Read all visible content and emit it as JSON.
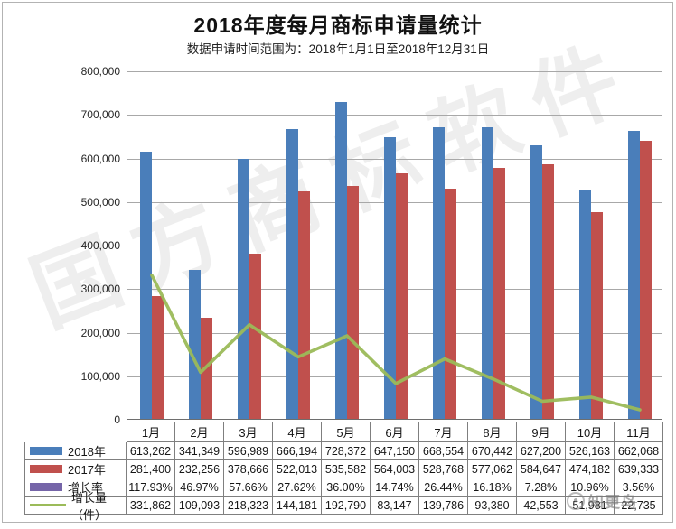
{
  "title": "2018年度每月商标申请量统计",
  "subtitle": "数据申请时间范围为：2018年1月1日至2018年12月31日",
  "watermarks": {
    "diagonal": "国方商标软件",
    "corner": "知更鸟"
  },
  "colors": {
    "bar_2018": "#4A7EBA",
    "bar_2017": "#C0504D",
    "rate_marker": "#7565A8",
    "growth_line": "#9BBB59",
    "gridline": "#A8A8A8",
    "table_border": "#7F7F7F"
  },
  "chart_data": {
    "type": "bar",
    "title": "2018年度每月商标申请量统计",
    "subtitle": "数据申请时间范围为：2018年1月1日至2018年12月31日",
    "categories": [
      "1月",
      "2月",
      "3月",
      "4月",
      "5月",
      "6月",
      "7月",
      "8月",
      "9月",
      "10月",
      "11月"
    ],
    "series": [
      {
        "name": "2018年",
        "type": "bar",
        "color": "#4A7EBA",
        "values": [
          613262,
          341349,
          596989,
          666194,
          728372,
          647150,
          668554,
          670442,
          627200,
          526163,
          662068
        ]
      },
      {
        "name": "2017年",
        "type": "bar",
        "color": "#C0504D",
        "values": [
          281400,
          232256,
          378666,
          522013,
          535582,
          564003,
          528768,
          577062,
          584647,
          474182,
          639333
        ]
      },
      {
        "name": "增长率",
        "type": "hidden",
        "color": "#7565A8",
        "visible_in_plot": false,
        "values_percent": [
          117.93,
          46.97,
          57.66,
          27.62,
          36.0,
          14.74,
          26.44,
          16.18,
          7.28,
          10.96,
          3.56
        ]
      },
      {
        "name": "增长量（件）",
        "type": "line",
        "color": "#9BBB59",
        "values": [
          331862,
          109093,
          218323,
          144181,
          192790,
          83147,
          139786,
          93380,
          42553,
          51981,
          22735
        ]
      }
    ],
    "ylim": [
      0,
      800000
    ],
    "ytick_step": 100000,
    "ytick_labels": [
      "0",
      "100,000",
      "200,000",
      "300,000",
      "400,000",
      "500,000",
      "600,000",
      "700,000",
      "800,000"
    ],
    "grid": true,
    "legend_position": "data-table-left"
  },
  "table": {
    "rows": [
      {
        "label": "2018年",
        "marker": "bar",
        "color": "#4A7EBA",
        "cells": [
          "613,262",
          "341,349",
          "596,989",
          "666,194",
          "728,372",
          "647,150",
          "668,554",
          "670,442",
          "627,200",
          "526,163",
          "662,068"
        ]
      },
      {
        "label": "2017年",
        "marker": "bar",
        "color": "#C0504D",
        "cells": [
          "281,400",
          "232,256",
          "378,666",
          "522,013",
          "535,582",
          "564,003",
          "528,768",
          "577,062",
          "584,647",
          "474,182",
          "639,333"
        ]
      },
      {
        "label": "增长率",
        "marker": "bar",
        "color": "#7565A8",
        "cells": [
          "117.93%",
          "46.97%",
          "57.66%",
          "27.62%",
          "36.00%",
          "14.74%",
          "26.44%",
          "16.18%",
          "7.28%",
          "10.96%",
          "3.56%"
        ]
      },
      {
        "label": "增长量（件）",
        "marker": "line",
        "color": "#9BBB59",
        "cells": [
          "331,862",
          "109,093",
          "218,323",
          "144,181",
          "192,790",
          "83,147",
          "139,786",
          "93,380",
          "42,553",
          "51,981",
          "22,735"
        ]
      }
    ]
  }
}
